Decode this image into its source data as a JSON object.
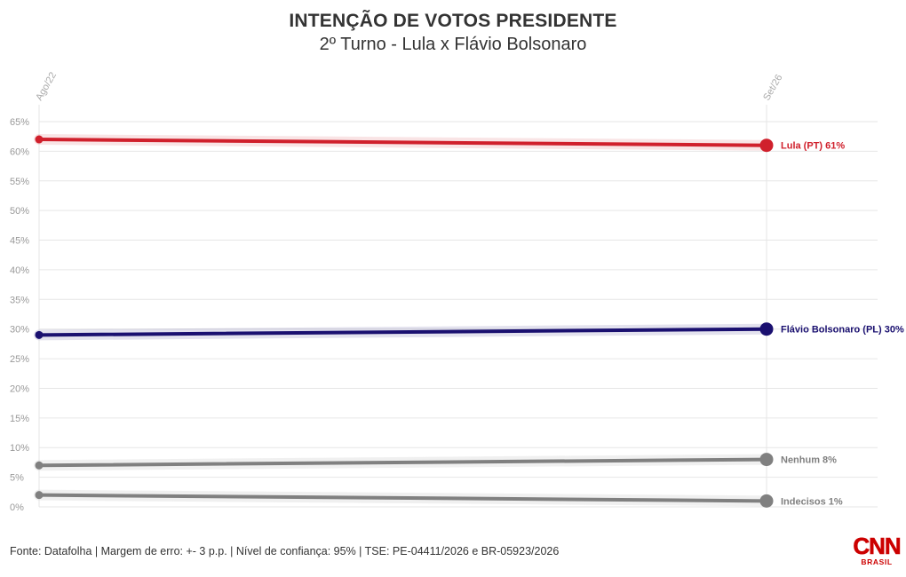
{
  "header": {
    "title": "INTENÇÃO DE VOTOS PRESIDENTE",
    "subtitle": "2º Turno - Lula x Flávio Bolsonaro"
  },
  "footer": {
    "source": "Fonte: Datafolha | Margem de erro: +- 3 p.p. | Nível de confiança: 95% | TSE: PE-04411/2026 e BR-05923/2026"
  },
  "logo": {
    "top": "CNN",
    "bottom": "BRASIL",
    "color": "#cc0000"
  },
  "chart_data": {
    "type": "line",
    "title": "INTENÇÃO DE VOTOS PRESIDENTE",
    "subtitle": "2º Turno - Lula x Flávio Bolsonaro",
    "xlabel": "",
    "ylabel": "",
    "x": [
      "Ago/22",
      "Set/26"
    ],
    "ylim": [
      0,
      65
    ],
    "yticks": [
      0,
      5,
      10,
      15,
      20,
      25,
      30,
      35,
      40,
      45,
      50,
      55,
      60,
      65
    ],
    "ytick_labels": [
      "0%",
      "5%",
      "10%",
      "15%",
      "20%",
      "25%",
      "30%",
      "35%",
      "40%",
      "45%",
      "50%",
      "55%",
      "60%",
      "65%"
    ],
    "grid": true,
    "series": [
      {
        "name": "Lula (PT)",
        "values": [
          62,
          61
        ],
        "color": "#d0202c",
        "end_label": "Lula (PT) 61%"
      },
      {
        "name": "Flávio Bolsonaro (PL)",
        "values": [
          29,
          30
        ],
        "color": "#1a1070",
        "end_label": "Flávio Bolsonaro (PL) 30%"
      },
      {
        "name": "Nenhum",
        "values": [
          7,
          8
        ],
        "color": "#808080",
        "end_label": "Nenhum 8%"
      },
      {
        "name": "Indecisos",
        "values": [
          2,
          1
        ],
        "color": "#808080",
        "end_label": "Indecisos 1%"
      }
    ]
  }
}
